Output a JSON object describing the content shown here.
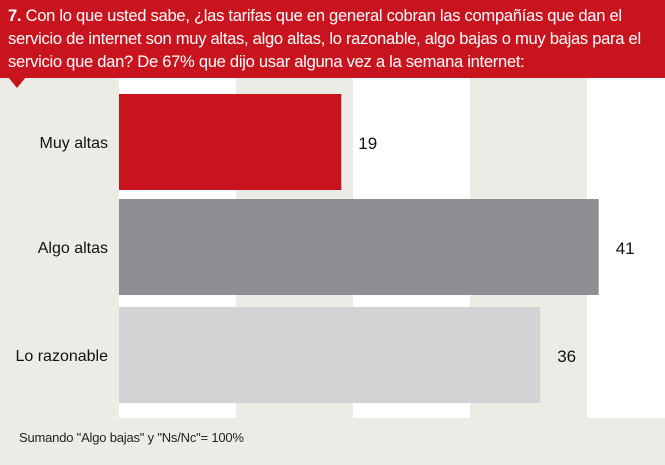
{
  "header": {
    "number": "7.",
    "text": "Con lo que usted sabe, ¿las tarifas que en general cobran las compañías que dan el servicio de internet son muy altas, algo altas, lo razonable, algo bajas o muy bajas para el servicio que dan? De 67% que dijo usar alguna vez a la semana internet:"
  },
  "chart_data": {
    "type": "bar",
    "orientation": "horizontal",
    "categories": [
      "Muy altas",
      "Algo altas",
      "Lo razonable"
    ],
    "values": [
      19,
      41,
      36
    ],
    "data_labels": [
      "19",
      "41",
      "36"
    ],
    "colors": [
      "#c8141e",
      "#8e8f92",
      "#d3d3d5"
    ],
    "xlim": [
      0,
      45
    ],
    "grid": true,
    "legend": "none"
  },
  "footnote": "Sumando  \"Algo bajas\" y \"Ns/Nc\"= 100%"
}
